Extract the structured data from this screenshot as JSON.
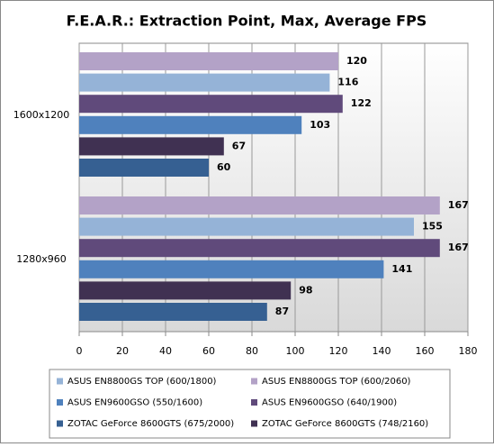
{
  "chart_data": {
    "type": "bar",
    "orientation": "horizontal",
    "title": "F.E.A.R.: Extraction Point, Max, Average FPS",
    "categories": [
      "1600x1200",
      "1280x960"
    ],
    "series": [
      {
        "name": "ASUS EN8800GS TOP (600/1800)",
        "color": "#95b3d7",
        "values": [
          116,
          155
        ]
      },
      {
        "name": "ASUS EN8800GS TOP (600/2060)",
        "color": "#b3a2c7",
        "values": [
          120,
          167
        ]
      },
      {
        "name": "ASUS EN9600GSO (550/1600)",
        "color": "#4f81bd",
        "values": [
          103,
          141
        ]
      },
      {
        "name": "ASUS EN9600GSO (640/1900)",
        "color": "#604a7b",
        "values": [
          122,
          167
        ]
      },
      {
        "name": "ZOTAC GeForce 8600GTS (675/2000)",
        "color": "#366092",
        "values": [
          60,
          87
        ]
      },
      {
        "name": "ZOTAC GeForce 8600GTS (748/2160)",
        "color": "#403152",
        "values": [
          67,
          98
        ]
      }
    ],
    "xlim": [
      0,
      180
    ],
    "xticks": [
      0,
      20,
      40,
      60,
      80,
      100,
      120,
      140,
      160,
      180
    ],
    "grid": true
  }
}
